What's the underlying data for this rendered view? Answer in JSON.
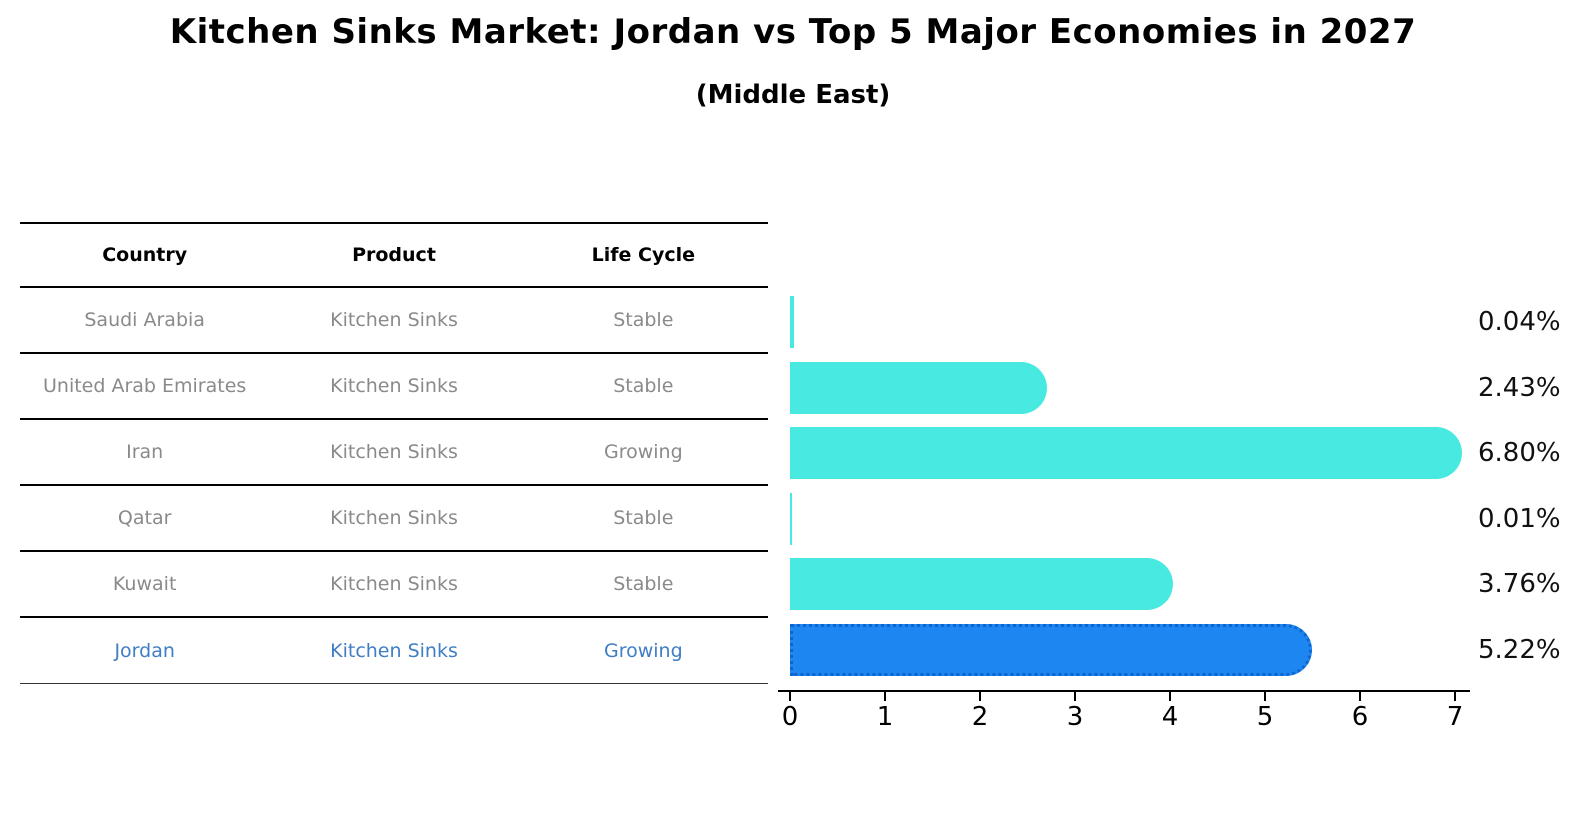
{
  "title": "Kitchen Sinks Market: Jordan vs Top 5 Major Economies in 2027",
  "subtitle": "(Middle East)",
  "table": {
    "headers": [
      "Country",
      "Product",
      "Life Cycle"
    ],
    "rows": [
      {
        "country": "Saudi Arabia",
        "product": "Kitchen Sinks",
        "life_cycle": "Stable",
        "highlighted": false
      },
      {
        "country": "United Arab Emirates",
        "product": "Kitchen Sinks",
        "life_cycle": "Stable",
        "highlighted": false
      },
      {
        "country": "Iran",
        "product": "Kitchen Sinks",
        "life_cycle": "Growing",
        "highlighted": false
      },
      {
        "country": "Qatar",
        "product": "Kitchen Sinks",
        "life_cycle": "Stable",
        "highlighted": false
      },
      {
        "country": "Kuwait",
        "product": "Kitchen Sinks",
        "life_cycle": "Stable",
        "highlighted": false
      },
      {
        "country": "Jordan",
        "product": "Kitchen Sinks",
        "life_cycle": "Growing",
        "highlighted": true
      }
    ]
  },
  "chart_data": {
    "type": "bar",
    "orientation": "horizontal",
    "title": "Kitchen Sinks Market: Jordan vs Top 5 Major Economies in 2027",
    "subtitle": "(Middle East)",
    "categories": [
      "Saudi Arabia",
      "United Arab Emirates",
      "Iran",
      "Qatar",
      "Kuwait",
      "Jordan"
    ],
    "values": [
      0.04,
      2.43,
      6.8,
      0.01,
      3.76,
      5.22
    ],
    "value_labels": [
      "0.04%",
      "2.43%",
      "6.80%",
      "0.01%",
      "3.76%",
      "5.22%"
    ],
    "xlabel": "",
    "ylabel": "",
    "xlim": [
      0,
      7
    ],
    "x_ticks": [
      "0",
      "1",
      "2",
      "3",
      "4",
      "5",
      "6",
      "7"
    ],
    "grid": false,
    "legend": "none",
    "highlight_index": 5,
    "colors": {
      "bar": "#47e9e0",
      "highlight_bar": "#1e86f0",
      "highlight_border": "#0d66d0",
      "highlight_text": "#3f7dc4",
      "table_text": "#8a8a8a",
      "value_text": "#111111"
    }
  }
}
